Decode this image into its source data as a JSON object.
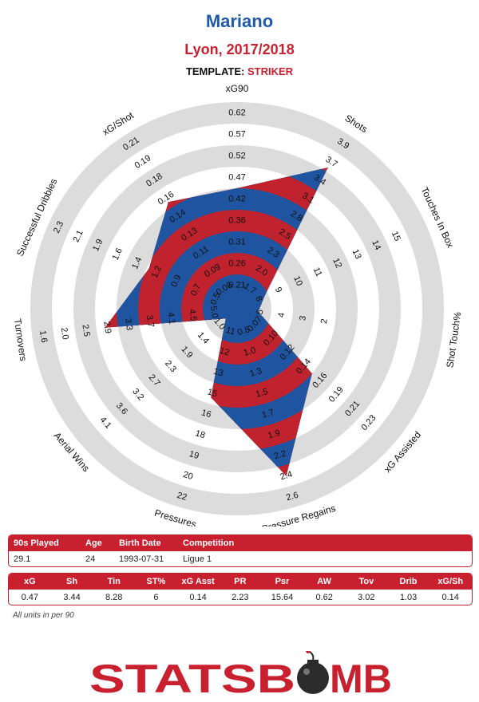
{
  "header": {
    "player": "Mariano",
    "team_season": "Lyon, 2017/2018",
    "template_label": "TEMPLATE:",
    "template_value": "STRIKER"
  },
  "chart_data": {
    "type": "radar",
    "axes": [
      {
        "name": "xG90",
        "ticks": [
          "0.21",
          "0.26",
          "0.31",
          "0.36",
          "0.42",
          "0.47",
          "0.52",
          "0.57",
          "0.62"
        ],
        "value_level": 5.0
      },
      {
        "name": "Shots",
        "ticks": [
          "1.7",
          "2.0",
          "2.3",
          "2.5",
          "2.8",
          "3.1",
          "3.4",
          "3.7",
          "3.9"
        ],
        "value_level": 7.2
      },
      {
        "name": "Touches In Box",
        "ticks": [
          "8",
          "9",
          "10",
          "11",
          "12",
          "13",
          "14",
          "15"
        ],
        "value_level": 0.8
      },
      {
        "name": "Shot Touch%",
        "ticks": [
          "5",
          "4",
          "3",
          "2"
        ],
        "value_level": 0.4
      },
      {
        "name": "xG Assisted",
        "ticks": [
          "0.07",
          "0.10",
          "0.12",
          "0.14",
          "0.16",
          "0.19",
          "0.21",
          "0.23"
        ],
        "value_level": 4.0
      },
      {
        "name": "Pressure Regains",
        "ticks": [
          "0.8",
          "1.0",
          "1.3",
          "1.5",
          "1.7",
          "1.9",
          "2.2",
          "2.4",
          "2.6"
        ],
        "value_level": 7.5
      },
      {
        "name": "Pressures",
        "ticks": [
          "11",
          "12",
          "13",
          "15",
          "16",
          "18",
          "19",
          "20",
          "22"
        ],
        "value_level": 3.7
      },
      {
        "name": "Aerial Wins",
        "ticks": [
          "1.0",
          "1.4",
          "1.9",
          "2.3",
          "2.7",
          "3.2",
          "3.6",
          "4.1"
        ],
        "value_level": 0.1
      },
      {
        "name": "Turnovers",
        "ticks": [
          "5.0",
          "4.5",
          "4.1",
          "3.7",
          "3.3",
          "2.9",
          "2.5",
          "2.0",
          "1.6"
        ],
        "value_level": 5.6
      },
      {
        "name": "Successful Dribbles",
        "ticks": [
          "0.5",
          "0.7",
          "0.9",
          "1.2",
          "1.4",
          "1.6",
          "1.9",
          "2.1",
          "2.3"
        ],
        "value_level": 3.9
      },
      {
        "name": "xG/Shot",
        "ticks": [
          "0.08",
          "0.09",
          "0.11",
          "0.13",
          "0.14",
          "0.16",
          "0.18",
          "0.19",
          "0.21"
        ],
        "value_level": 5.3
      }
    ],
    "colors": {
      "blue": "#1f55a0",
      "red": "#c0232e",
      "ring": "#dcdcdc"
    }
  },
  "summary_table": {
    "headers": [
      "90s Played",
      "Age",
      "Birth Date",
      "Competition"
    ],
    "values": [
      "29.1",
      "24",
      "1993-07-31",
      "Ligue 1"
    ]
  },
  "stats_table": {
    "headers": [
      "xG",
      "Sh",
      "Tin",
      "ST%",
      "xG Asst",
      "PR",
      "Psr",
      "AW",
      "Tov",
      "Drib",
      "xG/Sh"
    ],
    "values": [
      "0.47",
      "3.44",
      "8.28",
      "6",
      "0.14",
      "2.23",
      "15.64",
      "0.62",
      "3.02",
      "1.03",
      "0.14"
    ]
  },
  "footnote": "All units in per 90",
  "logo": {
    "text_left": "STATSB",
    "text_right": "MB",
    "color": "#c8202f"
  }
}
